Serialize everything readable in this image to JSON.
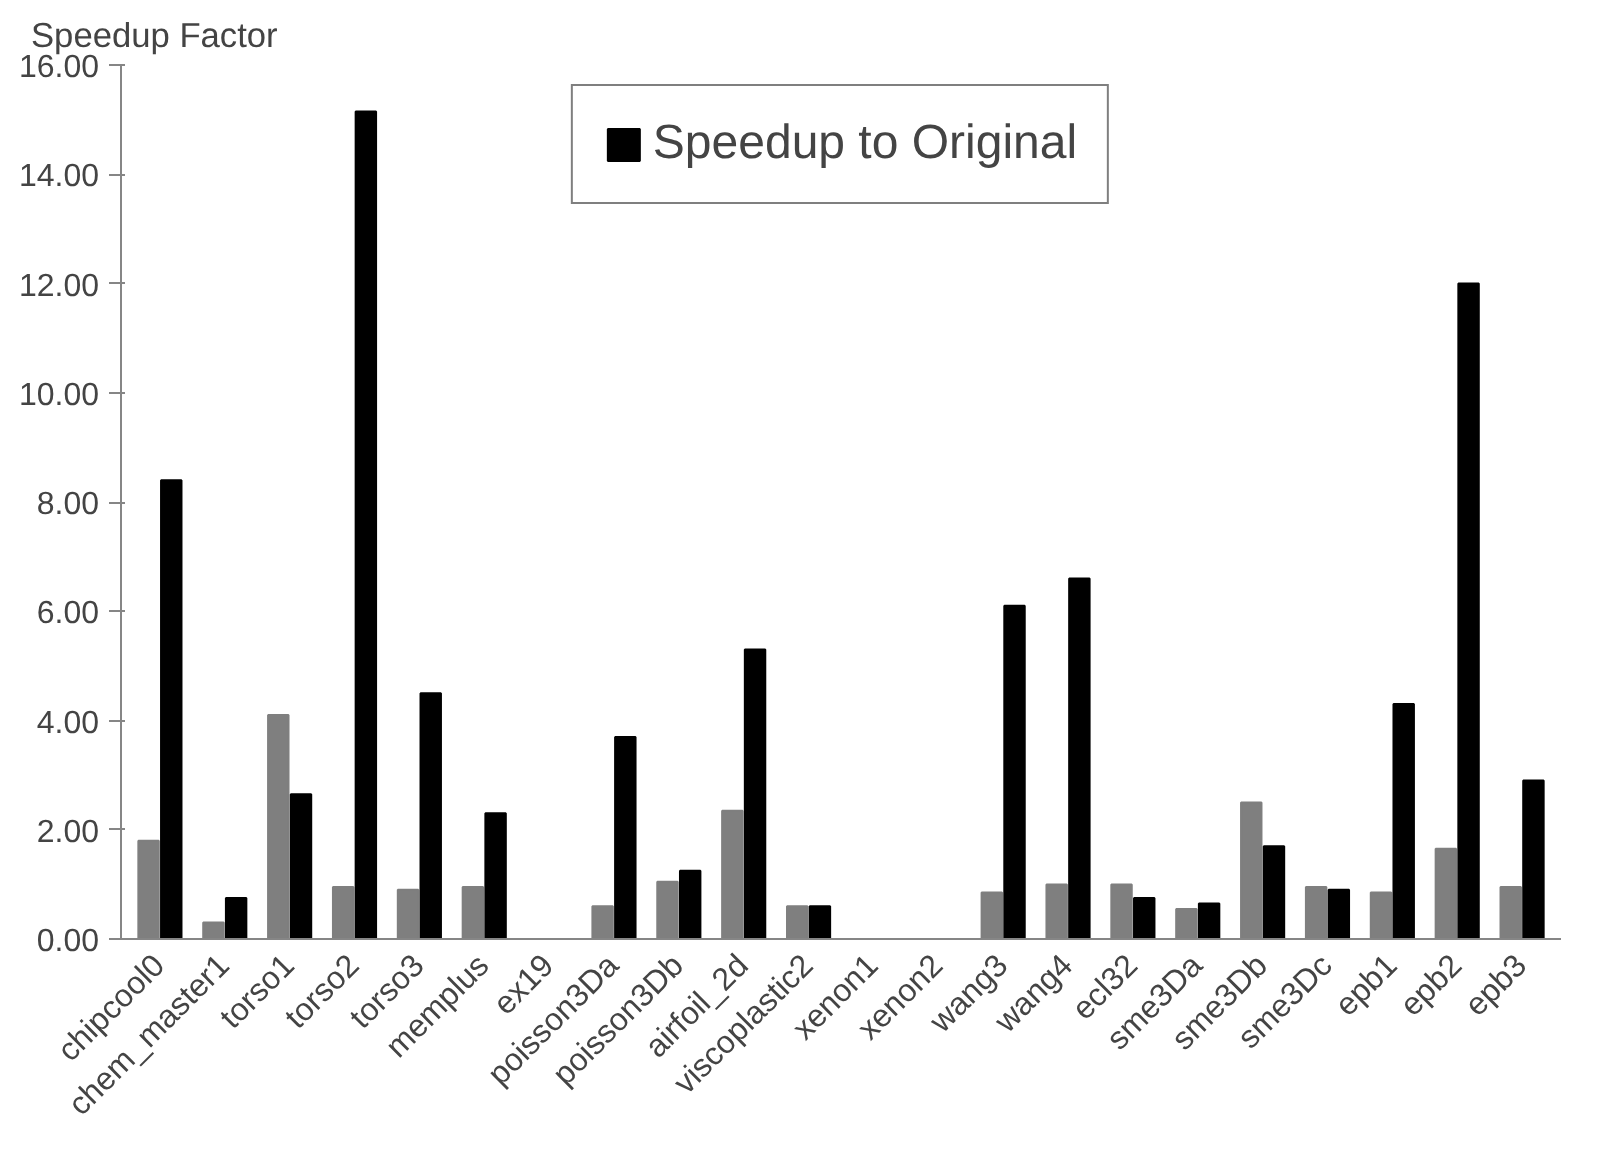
{
  "chart_data": {
    "type": "bar",
    "ylabel": "Speedup Factor",
    "categories": [
      "chipcool0",
      "chem_master1",
      "torso1",
      "torso2",
      "torso3",
      "memplus",
      "ex19",
      "poisson3Da",
      "poisson3Db",
      "airfoil_2d",
      "viscoplastic2",
      "xenon1",
      "xenon2",
      "wang3",
      "wang4",
      "ecl32",
      "sme3Da",
      "sme3Db",
      "sme3Dc",
      "epb1",
      "epb2",
      "epb3"
    ],
    "series": [
      {
        "color": "#7f7f7f",
        "values": [
          1.8,
          0.3,
          4.1,
          0.95,
          0.9,
          0.95,
          null,
          0.6,
          1.05,
          2.35,
          0.6,
          null,
          null,
          0.85,
          1.0,
          1.0,
          0.55,
          2.5,
          0.95,
          0.85,
          1.65,
          0.95
        ]
      },
      {
        "name": "Speedup to Original",
        "color": "#000000",
        "values": [
          8.4,
          0.75,
          2.65,
          15.15,
          4.5,
          2.3,
          null,
          3.7,
          1.25,
          5.3,
          0.6,
          null,
          null,
          6.1,
          6.6,
          0.75,
          0.65,
          1.7,
          0.9,
          4.3,
          12.0,
          2.9
        ]
      }
    ],
    "ylim": [
      0,
      16
    ],
    "yticks": [
      {
        "value": 0,
        "label": "0.00"
      },
      {
        "value": 2,
        "label": "2.00"
      },
      {
        "value": 4,
        "label": "4.00"
      },
      {
        "value": 6,
        "label": "6.00"
      },
      {
        "value": 8,
        "label": "8.00"
      },
      {
        "value": 10,
        "label": "10.00"
      },
      {
        "value": 12,
        "label": "12.00"
      },
      {
        "value": 14,
        "label": "14.00"
      },
      {
        "value": 16,
        "label": "16.00"
      }
    ],
    "legend": "top",
    "grid": false
  }
}
